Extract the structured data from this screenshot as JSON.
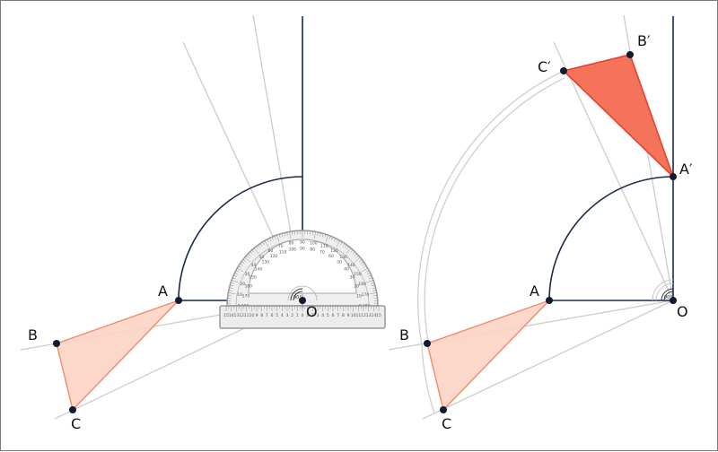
{
  "colors": {
    "construction_line": "#cccccc",
    "dark_line": "#1b2a45",
    "point": "#111b33",
    "original_fill": "#fbd4c4",
    "original_stroke": "#f08a6c",
    "image_fill": "#f5735a",
    "image_stroke": "#e8402a",
    "protractor_fill": "#f0f0f0",
    "protractor_stroke": "#9a9a9a"
  },
  "left_figure": {
    "point_labels": {
      "A": "A",
      "B": "B",
      "C": "C",
      "O": "O"
    }
  },
  "right_figure": {
    "point_labels": {
      "A": "A",
      "B": "B",
      "C": "C",
      "O": "O",
      "A_prime": "A′",
      "B_prime": "B′",
      "C_prime": "C′"
    }
  },
  "protractor": {
    "outer_scale": [
      "0",
      "10",
      "20",
      "30",
      "40",
      "50",
      "60",
      "70",
      "80",
      "90",
      "100",
      "110",
      "120",
      "130",
      "140",
      "150",
      "160",
      "170",
      "180"
    ],
    "inner_scale": [
      "180",
      "170",
      "160",
      "150",
      "140",
      "130",
      "120",
      "110",
      "100",
      "90",
      "80",
      "70",
      "60",
      "50",
      "40",
      "30",
      "20",
      "10",
      "0"
    ],
    "ruler_scale": [
      "15",
      "14",
      "13",
      "12",
      "11",
      "10",
      "9",
      "8",
      "7",
      "6",
      "5",
      "4",
      "3",
      "2",
      "1",
      "0",
      "1",
      "2",
      "3",
      "4",
      "5",
      "6",
      "7",
      "8",
      "9",
      "10",
      "11",
      "12",
      "13",
      "14",
      "15"
    ],
    "center_mark": "90"
  }
}
